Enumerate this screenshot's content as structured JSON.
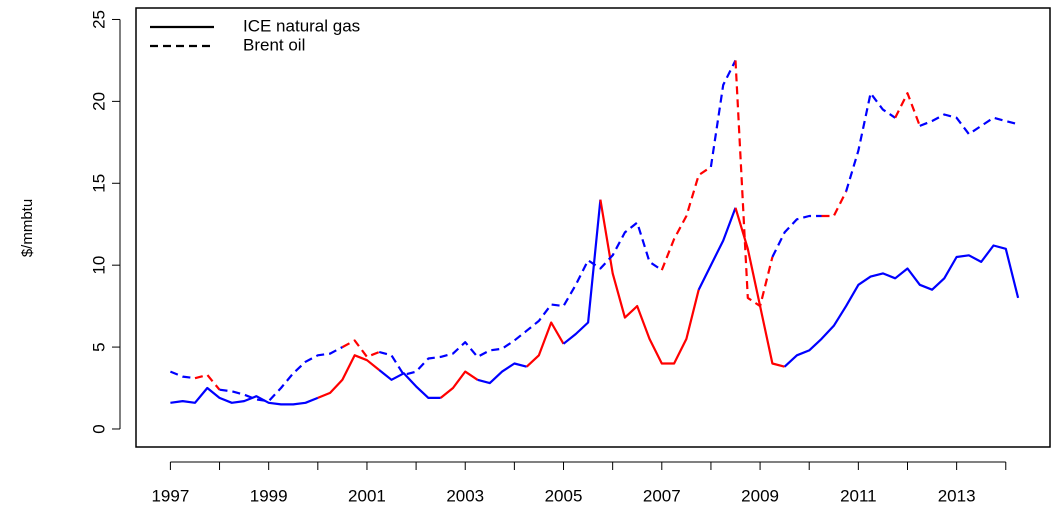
{
  "chart_data": {
    "type": "line",
    "y_label": "$/mmbtu",
    "x": [
      1997,
      1997.25,
      1997.5,
      1997.75,
      1998,
      1998.25,
      1998.5,
      1998.75,
      1999,
      1999.25,
      1999.5,
      1999.75,
      2000,
      2000.25,
      2000.5,
      2000.75,
      2001,
      2001.25,
      2001.5,
      2001.75,
      2002,
      2002.25,
      2002.5,
      2002.75,
      2003,
      2003.25,
      2003.5,
      2003.75,
      2004,
      2004.25,
      2004.5,
      2004.75,
      2005,
      2005.25,
      2005.5,
      2005.75,
      2006,
      2006.25,
      2006.5,
      2006.75,
      2007,
      2007.25,
      2007.5,
      2007.75,
      2008,
      2008.25,
      2008.5,
      2008.75,
      2009,
      2009.25,
      2009.5,
      2009.75,
      2010,
      2010.25,
      2010.5,
      2010.75,
      2011,
      2011.25,
      2011.5,
      2011.75,
      2012,
      2012.25,
      2012.5,
      2012.75,
      2013,
      2013.25,
      2013.5,
      2013.75,
      2014,
      2014.25
    ],
    "series": [
      {
        "name": "ICE natural gas",
        "dash": "solid",
        "values": [
          1.6,
          1.7,
          1.6,
          2.5,
          1.9,
          1.6,
          1.7,
          2.0,
          1.6,
          1.5,
          1.5,
          1.6,
          1.9,
          2.2,
          3.0,
          4.5,
          4.2,
          3.6,
          3.0,
          3.4,
          2.6,
          1.9,
          1.9,
          2.5,
          3.5,
          3.0,
          2.8,
          3.5,
          4.0,
          3.8,
          4.5,
          6.5,
          5.2,
          5.8,
          6.5,
          14.0,
          9.5,
          6.8,
          7.5,
          5.5,
          4.0,
          4.0,
          5.5,
          8.5,
          10.0,
          11.5,
          13.5,
          11.0,
          7.5,
          4.0,
          3.8,
          4.5,
          4.8,
          5.5,
          6.3,
          7.5,
          8.8,
          9.3,
          9.5,
          9.2,
          9.8,
          8.8,
          8.5,
          9.2,
          10.5,
          10.6,
          10.2,
          11.2,
          11.0,
          8.0
        ],
        "colors": [
          "#0000ff",
          "#0000ff",
          "#0000ff",
          "#0000ff",
          "#0000ff",
          "#0000ff",
          "#0000ff",
          "#0000ff",
          "#0000ff",
          "#0000ff",
          "#0000ff",
          "#0000ff",
          "#ff0000",
          "#ff0000",
          "#ff0000",
          "#ff0000",
          "#ff0000",
          "#0000ff",
          "#0000ff",
          "#0000ff",
          "#0000ff",
          "#0000ff",
          "#ff0000",
          "#ff0000",
          "#ff0000",
          "#0000ff",
          "#0000ff",
          "#0000ff",
          "#0000ff",
          "#ff0000",
          "#ff0000",
          "#ff0000",
          "#0000ff",
          "#0000ff",
          "#0000ff",
          "#ff0000",
          "#ff0000",
          "#ff0000",
          "#ff0000",
          "#ff0000",
          "#ff0000",
          "#ff0000",
          "#ff0000",
          "#0000ff",
          "#0000ff",
          "#0000ff",
          "#ff0000",
          "#ff0000",
          "#ff0000",
          "#ff0000",
          "#0000ff",
          "#0000ff",
          "#0000ff",
          "#0000ff",
          "#0000ff",
          "#0000ff",
          "#0000ff",
          "#0000ff",
          "#0000ff",
          "#0000ff",
          "#0000ff",
          "#0000ff",
          "#0000ff",
          "#0000ff",
          "#0000ff",
          "#0000ff",
          "#0000ff",
          "#0000ff",
          "#0000ff",
          "#0000ff"
        ]
      },
      {
        "name": "Brent oil",
        "dash": "dashed",
        "values": [
          3.5,
          3.2,
          3.1,
          3.3,
          2.4,
          2.3,
          2.1,
          1.8,
          1.7,
          2.5,
          3.4,
          4.1,
          4.5,
          4.6,
          5.0,
          5.4,
          4.4,
          4.7,
          4.5,
          3.3,
          3.5,
          4.3,
          4.4,
          4.6,
          5.3,
          4.4,
          4.8,
          4.9,
          5.4,
          6.0,
          6.6,
          7.6,
          7.5,
          8.8,
          10.3,
          9.8,
          10.6,
          12.0,
          12.6,
          10.2,
          9.7,
          11.6,
          13.0,
          15.5,
          16.0,
          21.0,
          22.5,
          8.0,
          7.5,
          10.5,
          12.0,
          12.8,
          13.0,
          13.0,
          13.0,
          14.5,
          17.0,
          20.5,
          19.5,
          19.0,
          20.5,
          18.5,
          18.8,
          19.2,
          19.0,
          18.0,
          18.5,
          19.0,
          18.8,
          18.6
        ],
        "colors": [
          "#0000ff",
          "#0000ff",
          "#ff0000",
          "#ff0000",
          "#0000ff",
          "#0000ff",
          "#0000ff",
          "#0000ff",
          "#0000ff",
          "#0000ff",
          "#0000ff",
          "#0000ff",
          "#0000ff",
          "#0000ff",
          "#ff0000",
          "#ff0000",
          "#ff0000",
          "#0000ff",
          "#0000ff",
          "#0000ff",
          "#0000ff",
          "#0000ff",
          "#0000ff",
          "#0000ff",
          "#0000ff",
          "#0000ff",
          "#0000ff",
          "#0000ff",
          "#0000ff",
          "#0000ff",
          "#0000ff",
          "#0000ff",
          "#0000ff",
          "#0000ff",
          "#0000ff",
          "#0000ff",
          "#0000ff",
          "#0000ff",
          "#0000ff",
          "#0000ff",
          "#ff0000",
          "#ff0000",
          "#ff0000",
          "#ff0000",
          "#0000ff",
          "#0000ff",
          "#ff0000",
          "#ff0000",
          "#ff0000",
          "#0000ff",
          "#0000ff",
          "#0000ff",
          "#0000ff",
          "#ff0000",
          "#ff0000",
          "#0000ff",
          "#0000ff",
          "#0000ff",
          "#0000ff",
          "#ff0000",
          "#ff0000",
          "#0000ff",
          "#0000ff",
          "#0000ff",
          "#0000ff",
          "#0000ff",
          "#0000ff",
          "#0000ff",
          "#0000ff",
          "#0000ff"
        ]
      }
    ],
    "legend_color": "#000000",
    "legend_position": "top-left",
    "xlim": [
      1996.3,
      2014.9
    ],
    "xticks": [
      1997,
      1999,
      2001,
      2003,
      2005,
      2007,
      2009,
      2011,
      2013
    ],
    "xminor": [
      1998,
      2000,
      2002,
      2004,
      2006,
      2008,
      2010,
      2012,
      2014
    ],
    "ylim": [
      -1.1,
      25.7
    ],
    "yticks": [
      0,
      5,
      10,
      15,
      20,
      25
    ]
  }
}
